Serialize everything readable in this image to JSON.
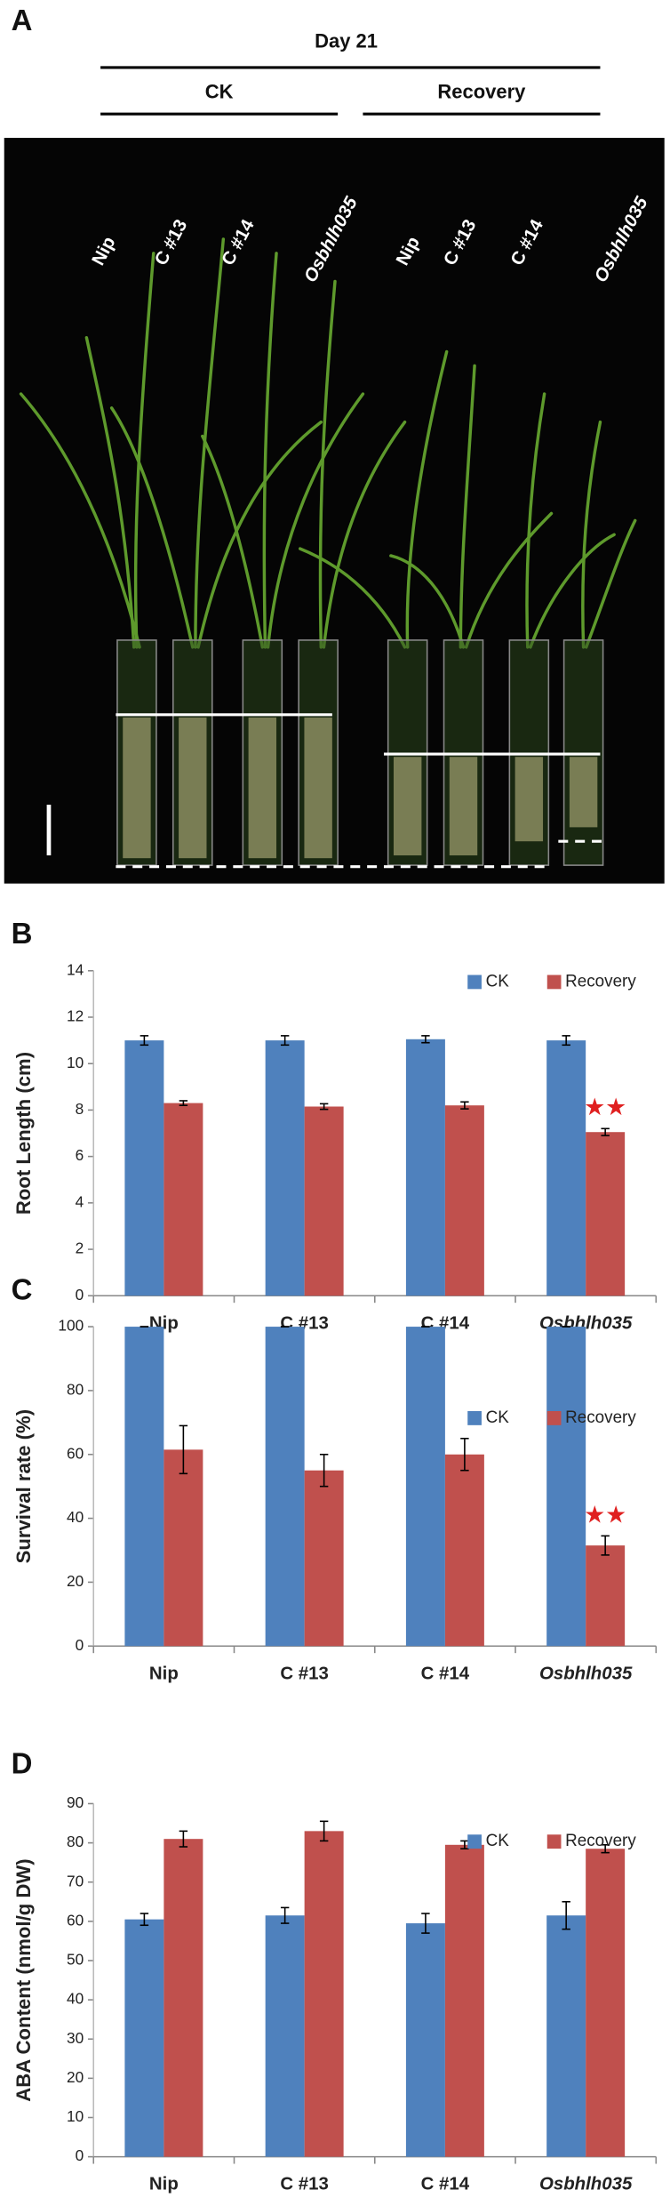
{
  "panel_a": {
    "label": "A",
    "title": "Day 21",
    "groups": [
      "CK",
      "Recovery"
    ],
    "samples": [
      "Nip",
      "C #13",
      "C #14",
      "Osbhlh035",
      "Nip",
      "C #13",
      "C #14",
      "Osbhlh035"
    ]
  },
  "chart_data": [
    {
      "type": "bar",
      "label": "B",
      "ylabel": "Root Length (cm)",
      "categories": [
        "Nip",
        "C #13",
        "C #14",
        "Osbhlh035"
      ],
      "series": [
        {
          "name": "CK",
          "color": "#4f81bd",
          "values": [
            11.0,
            11.0,
            11.05,
            11.0
          ],
          "errors": [
            0.2,
            0.2,
            0.15,
            0.2
          ]
        },
        {
          "name": "Recovery",
          "color": "#c0504d",
          "values": [
            8.3,
            8.15,
            8.2,
            7.05
          ],
          "errors": [
            0.1,
            0.12,
            0.15,
            0.15
          ]
        }
      ],
      "ylim": [
        0,
        14
      ],
      "yticks": [
        0,
        2,
        4,
        6,
        8,
        10,
        12,
        14
      ],
      "legend": "top-right",
      "annotations": [
        {
          "text": "★★",
          "category": "Osbhlh035",
          "series": "Recovery",
          "color": "#e02020"
        }
      ]
    },
    {
      "type": "bar",
      "label": "C",
      "ylabel": "Survival rate (%)",
      "categories": [
        "Nip",
        "C #13",
        "C #14",
        "Osbhlh035"
      ],
      "series": [
        {
          "name": "CK",
          "color": "#4f81bd",
          "values": [
            100,
            100,
            100,
            100
          ],
          "errors": [
            0,
            0,
            0,
            0
          ]
        },
        {
          "name": "Recovery",
          "color": "#c0504d",
          "values": [
            61.5,
            55,
            60,
            31.5
          ],
          "errors": [
            7.5,
            5,
            5,
            3
          ]
        }
      ],
      "ylim": [
        0,
        100
      ],
      "yticks": [
        0,
        20,
        40,
        60,
        80,
        100
      ],
      "legend": "top-right",
      "annotations": [
        {
          "text": "★★",
          "category": "Osbhlh035",
          "series": "Recovery",
          "color": "#e02020"
        }
      ]
    },
    {
      "type": "bar",
      "label": "D",
      "ylabel": "ABA Content (nmol/g DW)",
      "categories": [
        "Nip",
        "C #13",
        "C #14",
        "Osbhlh035"
      ],
      "series": [
        {
          "name": "CK",
          "color": "#4f81bd",
          "values": [
            60.5,
            61.5,
            59.5,
            61.5
          ],
          "errors": [
            1.5,
            2,
            2.5,
            3.5
          ]
        },
        {
          "name": "Recovery",
          "color": "#c0504d",
          "values": [
            81,
            83,
            79.5,
            78.5
          ],
          "errors": [
            2,
            2.5,
            1,
            1
          ]
        }
      ],
      "ylim": [
        0,
        90
      ],
      "yticks": [
        0,
        10,
        20,
        30,
        40,
        50,
        60,
        70,
        80,
        90
      ],
      "legend": "top-right",
      "annotations": []
    }
  ]
}
